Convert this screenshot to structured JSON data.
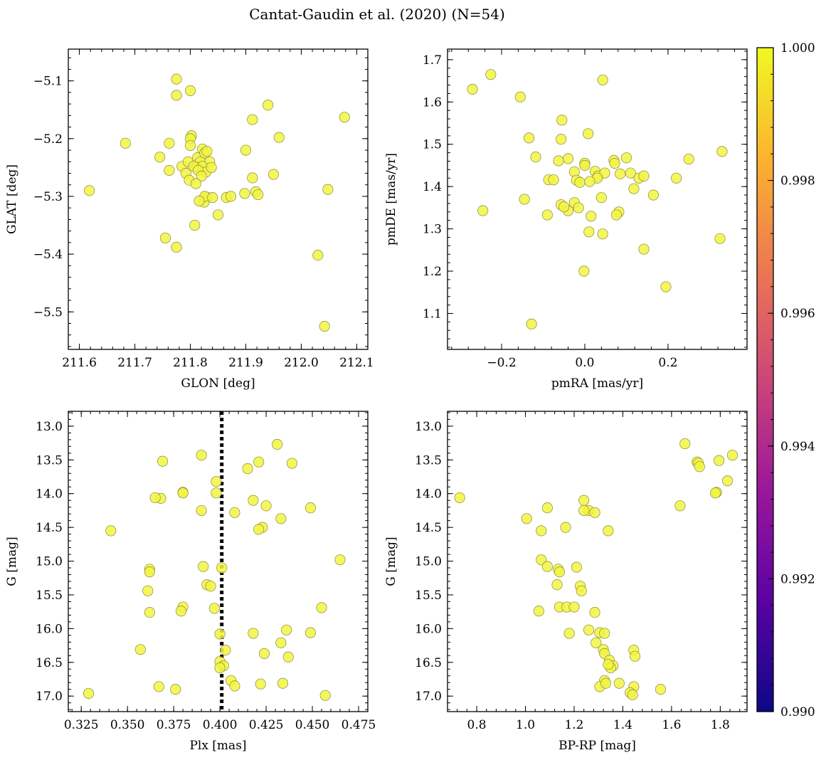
{
  "title": "Cantat-Gaudin et al. (2020) (N=54)",
  "colors": {
    "point_fill": "#f2f542",
    "point_edge": "#8a8a3a",
    "vline": "#000000",
    "colormap": [
      "#0d0887",
      "#5b02a3",
      "#9a179b",
      "#cb4678",
      "#eb7852",
      "#fbb32f",
      "#f0f921"
    ]
  },
  "chart_data": [
    {
      "id": "glon-glat",
      "type": "scatter",
      "xlabel": "GLON [deg]",
      "ylabel": "GLAT [deg]",
      "xlim": [
        211.58,
        212.12
      ],
      "ylim": [
        -5.565,
        -5.045
      ],
      "xticks": [
        211.6,
        211.7,
        211.8,
        211.9,
        212.0,
        212.1
      ],
      "xtick_labels": [
        "211.6",
        "211.7",
        "211.8",
        "211.9",
        "212.0",
        "212.1"
      ],
      "yticks": [
        -5.1,
        -5.2,
        -5.3,
        -5.4,
        -5.5
      ],
      "ytick_labels": [
        "−5.1",
        "−5.2",
        "−5.3",
        "−5.4",
        "−5.5"
      ],
      "x": [
        211.775,
        211.8,
        211.775,
        211.683,
        211.762,
        211.745,
        211.762,
        211.802,
        211.8,
        211.81,
        211.813,
        211.818,
        211.822,
        211.826,
        211.83,
        211.835,
        211.812,
        211.822,
        211.828,
        211.838,
        211.785,
        211.792,
        211.796,
        211.806,
        211.814,
        211.798,
        211.82,
        211.81,
        211.83,
        211.825,
        211.826,
        211.84,
        211.865,
        211.873,
        211.898,
        211.918,
        211.922,
        211.808,
        211.85,
        211.755,
        211.775,
        211.912,
        211.94,
        211.96,
        211.9,
        211.912,
        211.95,
        212.078,
        211.618,
        212.048,
        212.03,
        212.042,
        211.816,
        211.8
      ],
      "y": [
        -5.097,
        -5.117,
        -5.125,
        -5.208,
        -5.208,
        -5.232,
        -5.255,
        -5.195,
        -5.2,
        -5.245,
        -5.233,
        -5.24,
        -5.218,
        -5.225,
        -5.222,
        -5.24,
        -5.25,
        -5.248,
        -5.258,
        -5.25,
        -5.248,
        -5.26,
        -5.24,
        -5.248,
        -5.255,
        -5.272,
        -5.265,
        -5.278,
        -5.302,
        -5.31,
        -5.3,
        -5.302,
        -5.302,
        -5.3,
        -5.295,
        -5.292,
        -5.297,
        -5.35,
        -5.332,
        -5.372,
        -5.388,
        -5.167,
        -5.142,
        -5.198,
        -5.22,
        -5.268,
        -5.262,
        -5.163,
        -5.29,
        -5.288,
        -5.402,
        -5.525,
        -5.308,
        -5.212
      ]
    },
    {
      "id": "pm",
      "type": "scatter",
      "xlabel": "pmRA [mas/yr]",
      "ylabel": "pmDE [mas/yr]",
      "xlim": [
        -0.33,
        0.39
      ],
      "ylim": [
        1.015,
        1.725
      ],
      "xticks": [
        -0.2,
        0.0,
        0.2
      ],
      "xtick_labels": [
        "−0.2",
        "0.0",
        "0.2"
      ],
      "yticks": [
        1.1,
        1.2,
        1.3,
        1.4,
        1.5,
        1.6,
        1.7
      ],
      "ytick_labels": [
        "1.1",
        "1.2",
        "1.3",
        "1.4",
        "1.5",
        "1.6",
        "1.7"
      ],
      "x": [
        -0.226,
        -0.27,
        -0.155,
        0.043,
        -0.055,
        0.008,
        -0.057,
        -0.134,
        -0.118,
        -0.04,
        -0.063,
        -0.087,
        -0.075,
        -0.025,
        0.0,
        0.0,
        -0.02,
        -0.012,
        0.025,
        0.032,
        0.048,
        0.07,
        0.072,
        0.085,
        0.1,
        0.118,
        0.13,
        0.142,
        0.22,
        0.25,
        0.33,
        0.165,
        0.11,
        0.04,
        -0.057,
        -0.04,
        -0.025,
        -0.145,
        -0.09,
        0.015,
        0.082,
        0.076,
        0.043,
        0.01,
        -0.245,
        0.142,
        0.325,
        -0.002,
        0.195,
        -0.128,
        -0.05,
        -0.015,
        0.03,
        0.012
      ],
      "y": [
        1.665,
        1.63,
        1.612,
        1.652,
        1.557,
        1.525,
        1.512,
        1.515,
        1.47,
        1.466,
        1.461,
        1.416,
        1.416,
        1.435,
        1.455,
        1.45,
        1.415,
        1.41,
        1.436,
        1.425,
        1.432,
        1.462,
        1.455,
        1.43,
        1.468,
        1.395,
        1.42,
        1.425,
        1.42,
        1.465,
        1.483,
        1.38,
        1.432,
        1.374,
        1.357,
        1.343,
        1.362,
        1.37,
        1.333,
        1.33,
        1.34,
        1.333,
        1.288,
        1.293,
        1.343,
        1.252,
        1.277,
        1.2,
        1.163,
        1.075,
        1.352,
        1.35,
        1.42,
        1.412
      ]
    },
    {
      "id": "plx-g",
      "type": "scatter",
      "xlabel": "Plx [mas]",
      "ylabel": "G [mag]",
      "xlim": [
        0.318,
        0.48
      ],
      "ylim": [
        17.23,
        12.78
      ],
      "y_inverted": true,
      "vline": 0.401,
      "xticks": [
        0.325,
        0.35,
        0.375,
        0.4,
        0.425,
        0.45,
        0.475
      ],
      "xtick_labels": [
        "0.325",
        "0.350",
        "0.375",
        "0.400",
        "0.425",
        "0.450",
        "0.475"
      ],
      "yticks": [
        13.0,
        13.5,
        14.0,
        14.5,
        15.0,
        15.5,
        16.0,
        16.5,
        17.0
      ],
      "ytick_labels": [
        "13.0",
        "13.5",
        "14.0",
        "14.5",
        "15.0",
        "15.5",
        "16.0",
        "16.5",
        "17.0"
      ],
      "x": [
        0.431,
        0.39,
        0.369,
        0.439,
        0.421,
        0.415,
        0.398,
        0.368,
        0.38,
        0.398,
        0.418,
        0.425,
        0.449,
        0.365,
        0.39,
        0.408,
        0.433,
        0.423,
        0.341,
        0.421,
        0.465,
        0.391,
        0.401,
        0.362,
        0.362,
        0.393,
        0.395,
        0.361,
        0.362,
        0.38,
        0.379,
        0.397,
        0.455,
        0.436,
        0.418,
        0.449,
        0.4,
        0.433,
        0.357,
        0.403,
        0.424,
        0.437,
        0.4,
        0.402,
        0.4,
        0.367,
        0.376,
        0.406,
        0.408,
        0.422,
        0.434,
        0.329,
        0.457,
        0.38
      ],
      "y": [
        13.27,
        13.43,
        13.52,
        13.55,
        13.53,
        13.63,
        13.82,
        14.07,
        13.98,
        13.99,
        14.1,
        14.18,
        14.21,
        14.06,
        14.25,
        14.28,
        14.37,
        14.5,
        14.55,
        14.53,
        14.98,
        15.08,
        15.1,
        15.12,
        15.16,
        15.35,
        15.37,
        15.44,
        15.76,
        15.68,
        15.74,
        15.7,
        15.69,
        16.02,
        16.07,
        16.06,
        16.08,
        16.21,
        16.31,
        16.32,
        16.37,
        16.42,
        16.49,
        16.55,
        16.58,
        16.86,
        16.9,
        16.77,
        16.85,
        16.82,
        16.81,
        16.96,
        16.99,
        13.99
      ]
    },
    {
      "id": "cmd",
      "type": "scatter",
      "xlabel": "BP-RP [mag]",
      "ylabel": "G [mag]",
      "xlim": [
        0.68,
        1.91
      ],
      "ylim": [
        17.23,
        12.78
      ],
      "y_inverted": true,
      "xticks": [
        0.8,
        1.0,
        1.2,
        1.4,
        1.6,
        1.8
      ],
      "xtick_labels": [
        "0.8",
        "1.0",
        "1.2",
        "1.4",
        "1.6",
        "1.8"
      ],
      "yticks": [
        13.0,
        13.5,
        14.0,
        14.5,
        15.0,
        15.5,
        16.0,
        16.5,
        17.0
      ],
      "ytick_labels": [
        "13.0",
        "13.5",
        "14.0",
        "14.5",
        "15.0",
        "15.5",
        "16.0",
        "16.5",
        "17.0"
      ],
      "x": [
        1.655,
        1.85,
        1.795,
        1.83,
        1.705,
        1.71,
        1.715,
        1.785,
        1.78,
        1.635,
        0.73,
        1.005,
        1.09,
        1.065,
        1.165,
        1.24,
        1.26,
        1.24,
        1.285,
        1.34,
        1.065,
        1.09,
        1.135,
        1.14,
        1.21,
        1.13,
        1.225,
        1.23,
        1.055,
        1.14,
        1.17,
        1.2,
        1.285,
        1.26,
        1.18,
        1.305,
        1.325,
        1.29,
        1.32,
        1.325,
        1.345,
        1.36,
        1.445,
        1.45,
        1.35,
        1.325,
        1.305,
        1.385,
        1.445,
        1.33,
        1.43,
        1.44,
        1.555,
        1.34
      ],
      "y": [
        13.26,
        13.43,
        13.51,
        13.81,
        13.53,
        13.55,
        13.6,
        13.98,
        13.99,
        14.18,
        14.06,
        14.37,
        14.21,
        14.55,
        14.5,
        14.1,
        14.25,
        14.25,
        14.28,
        14.55,
        14.98,
        15.08,
        15.12,
        15.16,
        15.09,
        15.35,
        15.37,
        15.44,
        15.74,
        15.68,
        15.68,
        15.68,
        15.76,
        16.02,
        16.07,
        16.06,
        16.07,
        16.21,
        16.31,
        16.37,
        16.47,
        16.55,
        16.32,
        16.41,
        16.58,
        16.77,
        16.86,
        16.81,
        16.86,
        16.81,
        16.95,
        16.98,
        16.9,
        16.53
      ]
    }
  ],
  "colorbar": {
    "min": 0.99,
    "max": 1.0,
    "ticks": [
      0.99,
      0.992,
      0.994,
      0.996,
      0.998,
      1.0
    ],
    "tick_labels": [
      "0.990",
      "0.992",
      "0.994",
      "0.996",
      "0.998",
      "1.000"
    ]
  }
}
